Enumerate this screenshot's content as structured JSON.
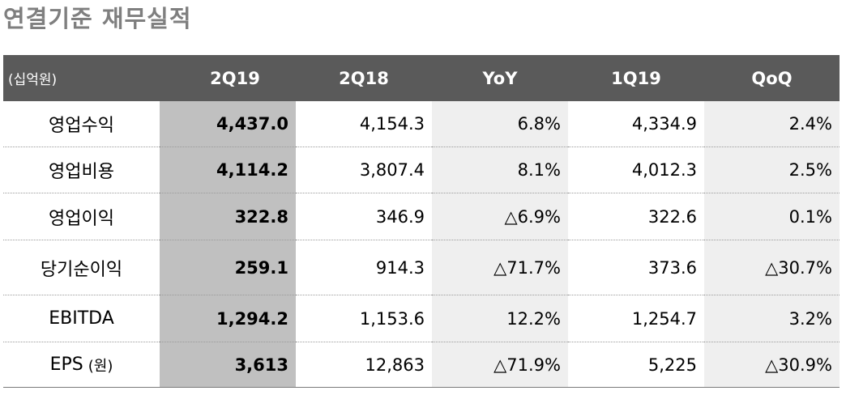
{
  "title": "연결기준 재무실적",
  "table": {
    "unit_label": "(십억원)",
    "columns": [
      "2Q19",
      "2Q18",
      "YoY",
      "1Q19",
      "QoQ"
    ],
    "rows": [
      {
        "label": "영업수익",
        "label_unit": "",
        "values": [
          "4,437.0",
          "4,154.3",
          "6.8%",
          "4,334.9",
          "2.4%"
        ]
      },
      {
        "label": "영업비용",
        "label_unit": "",
        "values": [
          "4,114.2",
          "3,807.4",
          "8.1%",
          "4,012.3",
          "2.5%"
        ]
      },
      {
        "label": "영업이익",
        "label_unit": "",
        "values": [
          "322.8",
          "346.9",
          "△6.9%",
          "322.6",
          "0.1%"
        ]
      },
      {
        "label": "당기순이익",
        "label_unit": "",
        "values": [
          "259.1",
          "914.3",
          "△71.7%",
          "373.6",
          "△30.7%"
        ]
      },
      {
        "label": "EBITDA",
        "label_unit": "",
        "values": [
          "1,294.2",
          "1,153.6",
          "12.2%",
          "1,254.7",
          "3.2%"
        ]
      },
      {
        "label": "EPS",
        "label_unit": "(원)",
        "values": [
          "3,613",
          "12,863",
          "△71.9%",
          "5,225",
          "△30.9%"
        ]
      }
    ]
  },
  "colors": {
    "header_bg": "#5a5a5a",
    "current_col_bg": "#c0c0c0",
    "rate_col_bg": "#efefef",
    "title_color": "#7f7f7f"
  }
}
